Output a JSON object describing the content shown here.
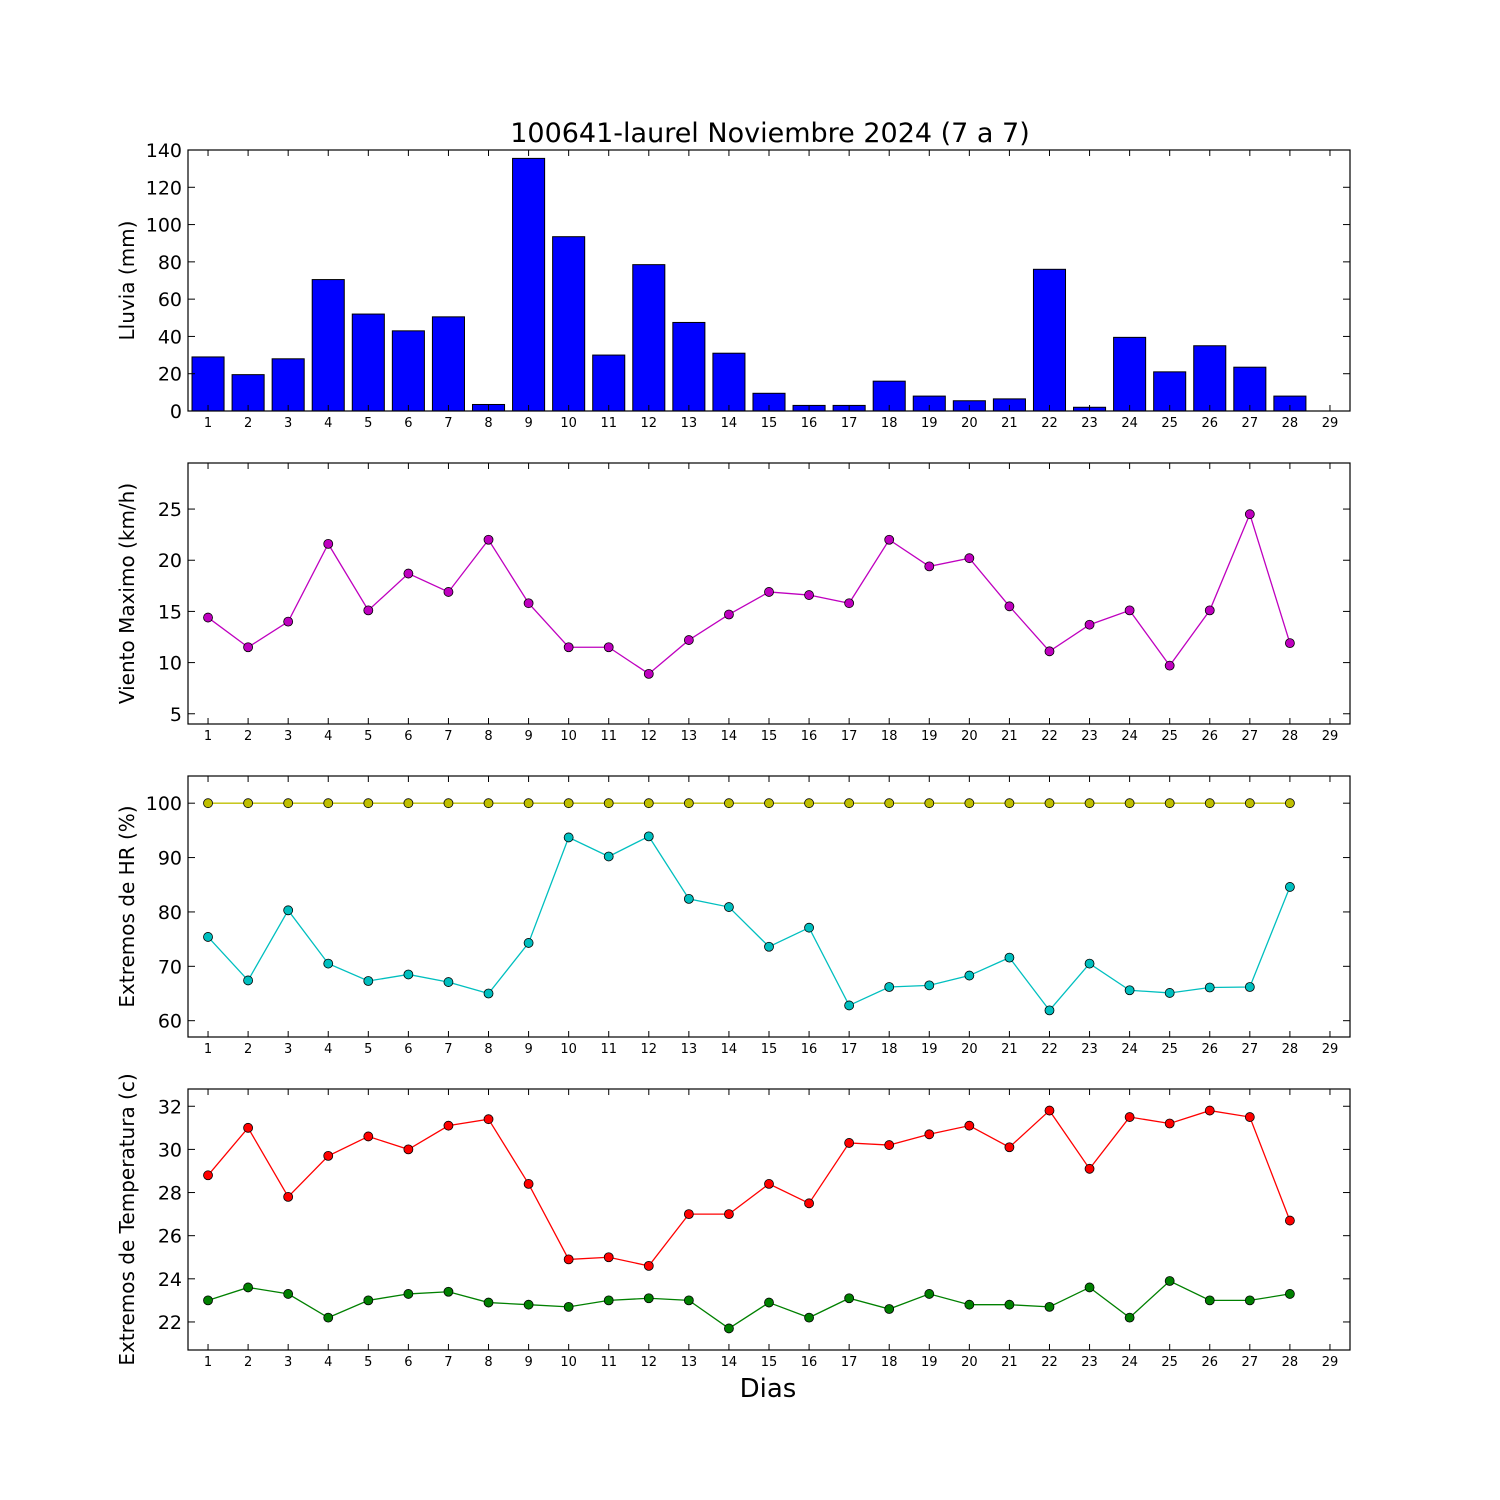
{
  "title": "100641-laurel Noviembre 2024  (7 a 7)",
  "xlabel": "Dias",
  "colors": {
    "rain": "#0000ff",
    "wind": "#bf00bf",
    "hr_max": "#bfbf00",
    "hr_min": "#00bfbf",
    "temp_max": "#ff0000",
    "temp_min": "#008000"
  },
  "chart_data": [
    {
      "type": "bar",
      "ylabel": "Lluvia (mm)",
      "ylim": [
        0,
        140
      ],
      "yticks": [
        0,
        20,
        40,
        60,
        80,
        100,
        120,
        140
      ],
      "xlim": [
        0.5,
        29.5
      ],
      "xticks": [
        1,
        2,
        3,
        4,
        5,
        6,
        7,
        8,
        9,
        10,
        11,
        12,
        13,
        14,
        15,
        16,
        17,
        18,
        19,
        20,
        21,
        22,
        23,
        24,
        25,
        26,
        27,
        28,
        29
      ],
      "x": [
        1,
        2,
        3,
        4,
        5,
        6,
        7,
        8,
        9,
        10,
        11,
        12,
        13,
        14,
        15,
        16,
        17,
        18,
        19,
        20,
        21,
        22,
        23,
        24,
        25,
        26,
        27,
        28
      ],
      "series": [
        {
          "values": [
            29,
            19.5,
            28,
            70.5,
            52,
            43,
            50.5,
            3.5,
            135.5,
            93.5,
            30,
            78.5,
            47.5,
            31,
            9.5,
            3,
            3,
            16,
            8,
            5.5,
            6.5,
            76,
            2,
            39.5,
            21,
            35,
            23.5,
            8
          ],
          "color_key": "rain"
        }
      ]
    },
    {
      "type": "line",
      "ylabel": "Viento Maximo (km/h)",
      "ylim": [
        4,
        29.5
      ],
      "yticks": [
        5,
        10,
        15,
        20,
        25
      ],
      "xlim": [
        0.5,
        29.5
      ],
      "xticks": [
        1,
        2,
        3,
        4,
        5,
        6,
        7,
        8,
        9,
        10,
        11,
        12,
        13,
        14,
        15,
        16,
        17,
        18,
        19,
        20,
        21,
        22,
        23,
        24,
        25,
        26,
        27,
        28,
        29
      ],
      "x": [
        1,
        2,
        3,
        4,
        5,
        6,
        7,
        8,
        9,
        10,
        11,
        12,
        13,
        14,
        15,
        16,
        17,
        18,
        19,
        20,
        21,
        22,
        23,
        24,
        25,
        26,
        27,
        28
      ],
      "series": [
        {
          "values": [
            14.4,
            11.5,
            14.0,
            21.6,
            15.1,
            18.7,
            16.9,
            22.0,
            15.8,
            11.5,
            11.5,
            8.9,
            12.2,
            14.7,
            16.9,
            16.6,
            15.8,
            22.0,
            19.4,
            20.2,
            15.5,
            11.1,
            13.7,
            15.1,
            9.7,
            15.1,
            24.5,
            11.9
          ],
          "color_key": "wind"
        }
      ]
    },
    {
      "type": "line",
      "ylabel": "Extremos de HR (%)",
      "ylim": [
        57,
        105
      ],
      "yticks": [
        60,
        70,
        80,
        90,
        100
      ],
      "xlim": [
        0.5,
        29.5
      ],
      "xticks": [
        1,
        2,
        3,
        4,
        5,
        6,
        7,
        8,
        9,
        10,
        11,
        12,
        13,
        14,
        15,
        16,
        17,
        18,
        19,
        20,
        21,
        22,
        23,
        24,
        25,
        26,
        27,
        28,
        29
      ],
      "x": [
        1,
        2,
        3,
        4,
        5,
        6,
        7,
        8,
        9,
        10,
        11,
        12,
        13,
        14,
        15,
        16,
        17,
        18,
        19,
        20,
        21,
        22,
        23,
        24,
        25,
        26,
        27,
        28
      ],
      "series": [
        {
          "values": [
            100,
            100,
            100,
            100,
            100,
            100,
            100,
            100,
            100,
            100,
            100,
            100,
            100,
            100,
            100,
            100,
            100,
            100,
            100,
            100,
            100,
            100,
            100,
            100,
            100,
            100,
            100,
            100
          ],
          "color_key": "hr_max"
        },
        {
          "values": [
            75.4,
            67.4,
            80.3,
            70.5,
            67.3,
            68.5,
            67.1,
            65.0,
            74.3,
            93.7,
            90.2,
            93.9,
            82.4,
            80.9,
            73.6,
            77.1,
            62.8,
            66.2,
            66.5,
            68.3,
            71.6,
            61.9,
            70.5,
            65.6,
            65.1,
            66.1,
            66.2,
            84.6
          ],
          "color_key": "hr_min"
        }
      ]
    },
    {
      "type": "line",
      "ylabel": "Extremos de Temperatura (c)",
      "ylim": [
        20.7,
        32.8
      ],
      "yticks": [
        22,
        24,
        26,
        28,
        30,
        32
      ],
      "xlim": [
        0.5,
        29.5
      ],
      "xticks": [
        1,
        2,
        3,
        4,
        5,
        6,
        7,
        8,
        9,
        10,
        11,
        12,
        13,
        14,
        15,
        16,
        17,
        18,
        19,
        20,
        21,
        22,
        23,
        24,
        25,
        26,
        27,
        28,
        29
      ],
      "x": [
        1,
        2,
        3,
        4,
        5,
        6,
        7,
        8,
        9,
        10,
        11,
        12,
        13,
        14,
        15,
        16,
        17,
        18,
        19,
        20,
        21,
        22,
        23,
        24,
        25,
        26,
        27,
        28
      ],
      "series": [
        {
          "values": [
            28.8,
            31.0,
            27.8,
            29.7,
            30.6,
            30.0,
            31.1,
            31.4,
            28.4,
            24.9,
            25.0,
            24.6,
            27.0,
            27.0,
            28.4,
            27.5,
            30.3,
            30.2,
            30.7,
            31.1,
            30.1,
            31.8,
            29.1,
            31.5,
            31.2,
            31.8,
            31.5,
            26.7
          ],
          "color_key": "temp_max"
        },
        {
          "values": [
            23.0,
            23.6,
            23.3,
            22.2,
            23.0,
            23.3,
            23.4,
            22.9,
            22.8,
            22.7,
            23.0,
            23.1,
            23.0,
            21.7,
            22.9,
            22.2,
            23.1,
            22.6,
            23.3,
            22.8,
            22.8,
            22.7,
            23.6,
            22.2,
            23.9,
            23.0,
            23.0,
            23.3
          ],
          "color_key": "temp_min"
        }
      ]
    }
  ]
}
